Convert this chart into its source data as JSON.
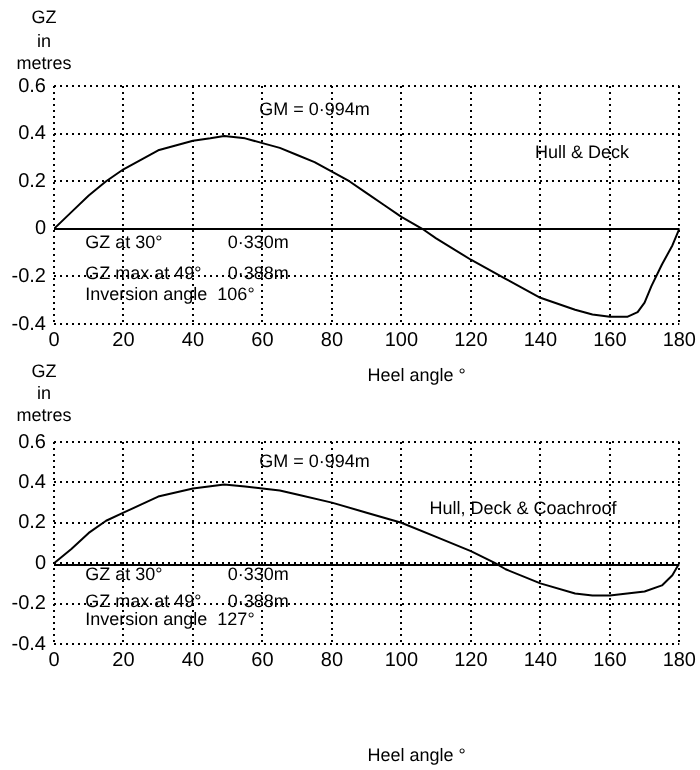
{
  "chart_data": [
    {
      "type": "line",
      "title": "Hull & Deck",
      "xlabel": "Heel angle °",
      "ylabel": "GZ in metres",
      "xlim": [
        0,
        180
      ],
      "xticks": [
        0,
        20,
        40,
        60,
        80,
        100,
        120,
        140,
        160,
        180
      ],
      "ylim": [
        -0.4,
        0.6
      ],
      "yticks": [
        -0.4,
        -0.2,
        0,
        0.2,
        0.4,
        0.6
      ],
      "grid": true,
      "legend": false,
      "marker": "none",
      "line_style": "solid",
      "ref_lines": [
        {
          "axis": "y",
          "value": 0,
          "color": "#000000",
          "line_style": "solid"
        }
      ],
      "annotations": [
        "GM = 0·994m",
        "GZ at 30°",
        "GZ max at 49°",
        "Inversion angle  106°",
        "0·330m",
        "0·388m"
      ],
      "series": [
        {
          "color": "#000000",
          "x": [
            0,
            5,
            10,
            15,
            20,
            25,
            30,
            35,
            40,
            45,
            49,
            55,
            60,
            65,
            70,
            75,
            80,
            85,
            90,
            95,
            100,
            106,
            110,
            120,
            130,
            140,
            150,
            155,
            160,
            165,
            168,
            170,
            172,
            175,
            178,
            180
          ],
          "values": [
            0,
            0.07,
            0.14,
            0.2,
            0.25,
            0.29,
            0.33,
            0.35,
            0.37,
            0.38,
            0.39,
            0.38,
            0.36,
            0.34,
            0.31,
            0.28,
            0.24,
            0.2,
            0.15,
            0.1,
            0.05,
            0,
            -0.04,
            -0.13,
            -0.21,
            -0.29,
            -0.34,
            -0.36,
            -0.37,
            -0.37,
            -0.35,
            -0.31,
            -0.24,
            -0.15,
            -0.07,
            0
          ]
        }
      ]
    },
    {
      "type": "line",
      "title": "Hull, Deck & Coachroof",
      "xlabel": "Heel angle °",
      "ylabel": "GZ in metres",
      "xlim": [
        0,
        180
      ],
      "xticks": [
        0,
        20,
        40,
        60,
        80,
        100,
        120,
        140,
        160,
        180
      ],
      "ylim": [
        -0.4,
        0.6
      ],
      "yticks": [
        -0.4,
        -0.2,
        0,
        0.2,
        0.4,
        0.6
      ],
      "grid": true,
      "legend": false,
      "marker": "none",
      "line_style": "solid",
      "ref_lines": [
        {
          "axis": "y",
          "value": 0,
          "color": "#000000",
          "line_style": "solid"
        }
      ],
      "annotations": [
        "GM = 0·994m",
        "GZ at 30°",
        "GZ max at 49°",
        "Inversion angle  127°",
        "0·330m",
        "0·388m"
      ],
      "series": [
        {
          "color": "#000000",
          "x": [
            0,
            5,
            10,
            15,
            20,
            25,
            30,
            40,
            49,
            55,
            60,
            65,
            70,
            80,
            90,
            100,
            110,
            120,
            127,
            130,
            140,
            150,
            155,
            160,
            165,
            170,
            175,
            178,
            180
          ],
          "values": [
            0,
            0.07,
            0.15,
            0.21,
            0.25,
            0.29,
            0.33,
            0.37,
            0.39,
            0.38,
            0.37,
            0.36,
            0.34,
            0.3,
            0.25,
            0.2,
            0.13,
            0.06,
            0,
            -0.03,
            -0.1,
            -0.15,
            -0.16,
            -0.16,
            -0.15,
            -0.14,
            -0.11,
            -0.06,
            0
          ]
        }
      ]
    }
  ]
}
